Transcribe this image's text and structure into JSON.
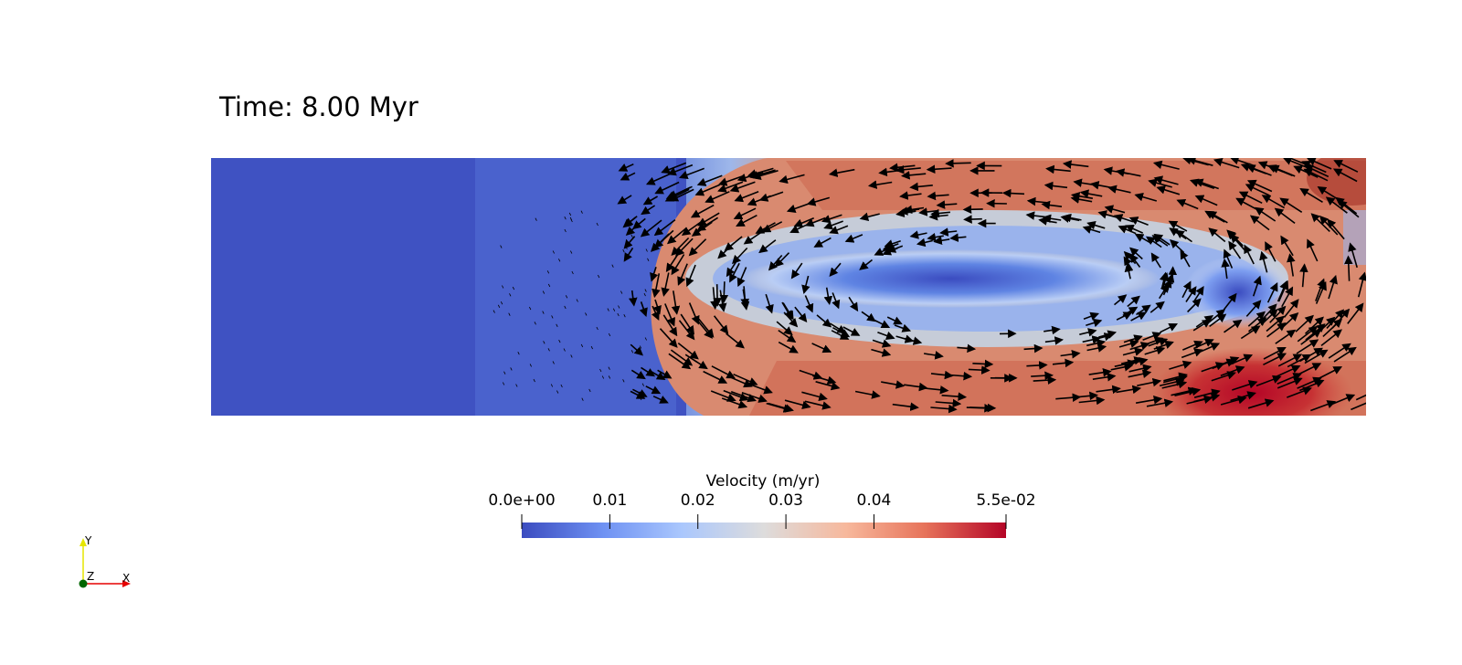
{
  "annotation": {
    "time_text": "Time: 8.00 Myr"
  },
  "colorbar": {
    "title": "Velocity (m/yr)",
    "range": [
      0.0,
      0.055
    ],
    "ticks": [
      {
        "value": 0.0,
        "label": "0.0e+00"
      },
      {
        "value": 0.01,
        "label": "0.01"
      },
      {
        "value": 0.02,
        "label": "0.02"
      },
      {
        "value": 0.03,
        "label": "0.03"
      },
      {
        "value": 0.04,
        "label": "0.04"
      },
      {
        "value": 0.055,
        "label": "5.5e-02"
      }
    ],
    "colormap": [
      "#3b4cc0",
      "#6f92f3",
      "#aac7fd",
      "#dddcdc",
      "#f7b89c",
      "#e7745b",
      "#b40426"
    ]
  },
  "orientation_axes": {
    "y_label": "Y",
    "x_label": "X",
    "z_label": "Z",
    "y_color": "#e6e600",
    "x_color": "#e60000",
    "z_color": "#006600"
  }
}
